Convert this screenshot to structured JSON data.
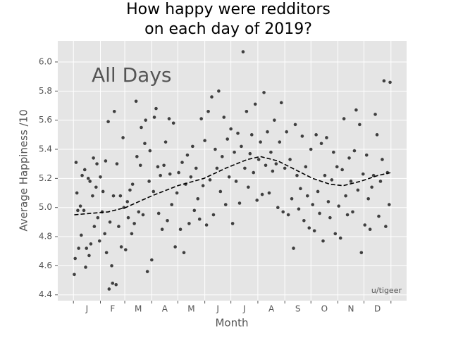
{
  "chart_data": {
    "type": "scatter",
    "title": [
      "How happy were redditors",
      "on each day of 2019?"
    ],
    "x_label": "Month",
    "y_label": "Average Happiness /10",
    "annotations": [
      "All Days",
      "u/tigeer"
    ],
    "color": "#222222",
    "grid": true,
    "xlim": [
      -18,
      383
    ],
    "ylim": [
      4.36,
      6.145
    ],
    "xticks": [
      0,
      31,
      59,
      90,
      120,
      151,
      181,
      212,
      243,
      273,
      304,
      334,
      365
    ],
    "xtick_labels": [
      {
        "value": 15.5,
        "label": "J"
      },
      {
        "value": 45,
        "label": "F"
      },
      {
        "value": 74.5,
        "label": "M"
      },
      {
        "value": 105,
        "label": "A"
      },
      {
        "value": 135.5,
        "label": "M"
      },
      {
        "value": 166,
        "label": "J"
      },
      {
        "value": 196.5,
        "label": "J"
      },
      {
        "value": 227.5,
        "label": "A"
      },
      {
        "value": 258,
        "label": "S"
      },
      {
        "value": 288.5,
        "label": "O"
      },
      {
        "value": 319,
        "label": "N"
      },
      {
        "value": 349.5,
        "label": "D"
      }
    ],
    "yticks": [
      4.4,
      4.6,
      4.8,
      {
        "value": 5.0,
        "label": "5.0"
      },
      5.2,
      5.4,
      5.6,
      5.8,
      {
        "value": 6.0,
        "label": "6.0"
      }
    ],
    "x": [
      1,
      2,
      3,
      4,
      5,
      6,
      8,
      9,
      10,
      12,
      13,
      14,
      15,
      17,
      18,
      19,
      20,
      22,
      23,
      24,
      26,
      27,
      28,
      30,
      31,
      33,
      34,
      36,
      37,
      38,
      40,
      41,
      42,
      44,
      45,
      46,
      47,
      49,
      50,
      52,
      54,
      55,
      57,
      58,
      60,
      62,
      63,
      65,
      67,
      68,
      70,
      72,
      73,
      75,
      77,
      78,
      80,
      82,
      83,
      85,
      87,
      88,
      90,
      92,
      93,
      95,
      97,
      98,
      100,
      102,
      104,
      106,
      108,
      110,
      111,
      113,
      115,
      117,
      119,
      121,
      123,
      125,
      127,
      129,
      131,
      133,
      135,
      137,
      139,
      141,
      143,
      145,
      147,
      149,
      151,
      153,
      155,
      157,
      159,
      161,
      163,
      165,
      167,
      169,
      171,
      173,
      175,
      177,
      179,
      181,
      183,
      185,
      187,
      189,
      191,
      193,
      195,
      197,
      199,
      201,
      203,
      205,
      207,
      209,
      211,
      213,
      215,
      217,
      219,
      221,
      223,
      225,
      227,
      229,
      231,
      233,
      235,
      237,
      239,
      241,
      243,
      245,
      247,
      249,
      251,
      253,
      255,
      257,
      259,
      261,
      263,
      265,
      267,
      269,
      271,
      273,
      275,
      277,
      279,
      281,
      283,
      285,
      287,
      289,
      291,
      293,
      295,
      297,
      299,
      301,
      303,
      305,
      307,
      309,
      311,
      313,
      315,
      317,
      319,
      321,
      323,
      325,
      327,
      329,
      331,
      333,
      335,
      337,
      339,
      341,
      343,
      345,
      347,
      349,
      351,
      353,
      355,
      357,
      359,
      361,
      363,
      364
    ],
    "values": [
      4.54,
      4.65,
      5.31,
      5.1,
      4.98,
      4.72,
      5.01,
      4.81,
      5.22,
      4.98,
      5.26,
      4.59,
      4.72,
      5.2,
      4.67,
      5.18,
      4.75,
      5.08,
      5.34,
      4.87,
      5.14,
      5.3,
      4.93,
      4.77,
      5.21,
      4.97,
      5.11,
      4.82,
      5.32,
      4.69,
      5.59,
      4.44,
      4.9,
      4.6,
      4.48,
      5.08,
      5.66,
      4.47,
      5.3,
      4.87,
      5.08,
      4.73,
      5.48,
      5.0,
      4.71,
      5.04,
      4.93,
      5.12,
      4.82,
      5.16,
      4.89,
      5.73,
      5.35,
      4.97,
      5.29,
      5.55,
      4.95,
      5.44,
      5.6,
      4.56,
      5.18,
      5.39,
      4.64,
      5.11,
      5.62,
      5.68,
      5.28,
      4.96,
      5.22,
      4.85,
      5.29,
      5.45,
      4.91,
      5.61,
      5.23,
      5.02,
      5.58,
      4.73,
      5.1,
      5.24,
      4.85,
      5.31,
      4.69,
      5.16,
      5.36,
      4.89,
      5.21,
      5.42,
      4.98,
      5.27,
      5.06,
      4.92,
      5.61,
      5.15,
      5.46,
      4.88,
      5.66,
      5.19,
      5.76,
      4.95,
      5.4,
      5.27,
      5.8,
      5.11,
      5.35,
      5.62,
      5.02,
      5.47,
      5.21,
      5.54,
      4.89,
      5.38,
      5.18,
      5.51,
      5.03,
      5.42,
      6.07,
      5.27,
      5.66,
      5.14,
      5.37,
      5.5,
      5.24,
      5.71,
      5.05,
      5.33,
      5.45,
      5.09,
      5.79,
      5.29,
      5.52,
      5.1,
      5.38,
      5.25,
      5.6,
      5.3,
      5.0,
      5.45,
      5.72,
      4.97,
      5.27,
      5.52,
      4.95,
      5.33,
      5.06,
      4.72,
      5.57,
      5.22,
      4.99,
      5.13,
      5.49,
      4.91,
      5.28,
      5.08,
      4.86,
      5.4,
      5.02,
      4.84,
      5.5,
      5.11,
      4.96,
      5.44,
      4.77,
      5.22,
      5.48,
      5.04,
      4.93,
      5.19,
      5.38,
      4.82,
      5.28,
      5.01,
      4.79,
      5.26,
      5.61,
      5.08,
      4.95,
      5.34,
      5.18,
      4.97,
      5.39,
      5.67,
      5.12,
      5.57,
      4.69,
      5.23,
      4.88,
      5.36,
      5.06,
      4.85,
      5.14,
      5.22,
      5.64,
      5.5,
      4.94,
      5.18,
      5.33,
      5.87,
      4.87,
      5.24,
      5.02,
      5.86
    ],
    "lines": [
      {
        "color": "#000000",
        "style": "dashed",
        "x": [
          1,
          20,
          40,
          60,
          90,
          120,
          150,
          175,
          200,
          215,
          235,
          255,
          275,
          295,
          310,
          330,
          350,
          365
        ],
        "values": [
          4.95,
          4.96,
          4.97,
          5.0,
          5.08,
          5.15,
          5.2,
          5.27,
          5.33,
          5.35,
          5.32,
          5.26,
          5.2,
          5.16,
          5.15,
          5.18,
          5.22,
          5.24
        ]
      }
    ]
  }
}
